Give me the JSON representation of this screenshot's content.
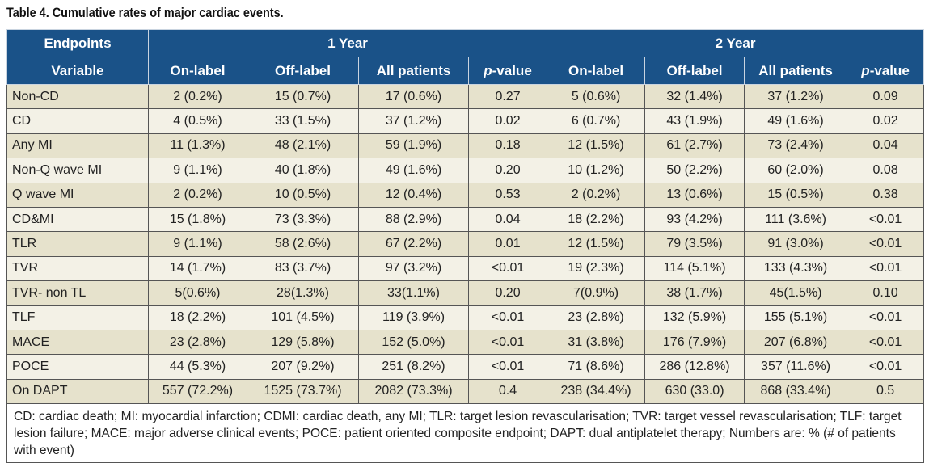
{
  "title": "Table 4. Cumulative rates of major cardiac events.",
  "header": {
    "endpoints": "Endpoints",
    "year1": "1 Year",
    "year2": "2 Year",
    "columns": [
      "Variable",
      "On-label",
      "Off-label",
      "All patients",
      "p-value",
      "On-label",
      "Off-label",
      "All patients",
      "p-value"
    ]
  },
  "rows": [
    [
      "Non-CD",
      "2 (0.2%)",
      "15 (0.7%)",
      "17 (0.6%)",
      "0.27",
      "5 (0.6%)",
      "32 (1.4%)",
      "37 (1.2%)",
      "0.09"
    ],
    [
      "CD",
      "4 (0.5%)",
      "33 (1.5%)",
      "37 (1.2%)",
      "0.02",
      "6 (0.7%)",
      "43 (1.9%)",
      "49 (1.6%)",
      "0.02"
    ],
    [
      "Any MI",
      "11 (1.3%)",
      "48 (2.1%)",
      "59 (1.9%)",
      "0.18",
      "12 (1.5%)",
      "61 (2.7%)",
      "73 (2.4%)",
      "0.04"
    ],
    [
      "Non-Q wave MI",
      "9 (1.1%)",
      "40 (1.8%)",
      "49 (1.6%)",
      "0.20",
      "10 (1.2%)",
      "50 (2.2%)",
      "60 (2.0%)",
      "0.08"
    ],
    [
      "Q wave MI",
      "2 (0.2%)",
      "10 (0.5%)",
      "12 (0.4%)",
      "0.53",
      "2 (0.2%)",
      "13 (0.6%)",
      "15 (0.5%)",
      "0.38"
    ],
    [
      "CD&MI",
      "15 (1.8%)",
      "73 (3.3%)",
      "88 (2.9%)",
      "0.04",
      "18 (2.2%)",
      "93 (4.2%)",
      "111 (3.6%)",
      "<0.01"
    ],
    [
      "TLR",
      "9 (1.1%)",
      "58 (2.6%)",
      "67 (2.2%)",
      "0.01",
      "12 (1.5%)",
      "79 (3.5%)",
      "91 (3.0%)",
      "<0.01"
    ],
    [
      "TVR",
      "14 (1.7%)",
      "83 (3.7%)",
      "97 (3.2%)",
      "<0.01",
      "19 (2.3%)",
      "114 (5.1%)",
      "133 (4.3%)",
      "<0.01"
    ],
    [
      "TVR- non TL",
      "5(0.6%)",
      "28(1.3%)",
      "33(1.1%)",
      "0.20",
      "7(0.9%)",
      "38 (1.7%)",
      "45(1.5%)",
      "0.10"
    ],
    [
      "TLF",
      "18 (2.2%)",
      "101 (4.5%)",
      "119 (3.9%)",
      "<0.01",
      "23 (2.8%)",
      "132 (5.9%)",
      "155 (5.1%)",
      "<0.01"
    ],
    [
      "MACE",
      "23 (2.8%)",
      "129 (5.8%)",
      "152 (5.0%)",
      "<0.01",
      "31 (3.8%)",
      "176 (7.9%)",
      "207 (6.8%)",
      "<0.01"
    ],
    [
      "POCE",
      "44 (5.3%)",
      "207 (9.2%)",
      "251 (8.2%)",
      "<0.01",
      "71 (8.6%)",
      "286 (12.8%)",
      "357 (11.6%)",
      "<0.01"
    ],
    [
      "On DAPT",
      "557 (72.2%)",
      "1525 (73.7%)",
      "2082 (73.3%)",
      "0.4",
      "238 (34.4%)",
      "630 (33.0)",
      "868 (33.4%)",
      "0.5"
    ]
  ],
  "footnote": "CD: cardiac death; MI: myocardial infarction; CDMI: cardiac death, any MI; TLR: target lesion revascularisation; TVR: target vessel revascularisation; TLF: target lesion failure; MACE: major adverse clinical events; POCE: patient oriented composite endpoint; DAPT: dual antiplatelet therapy; Numbers are: % (# of patients with event)"
}
